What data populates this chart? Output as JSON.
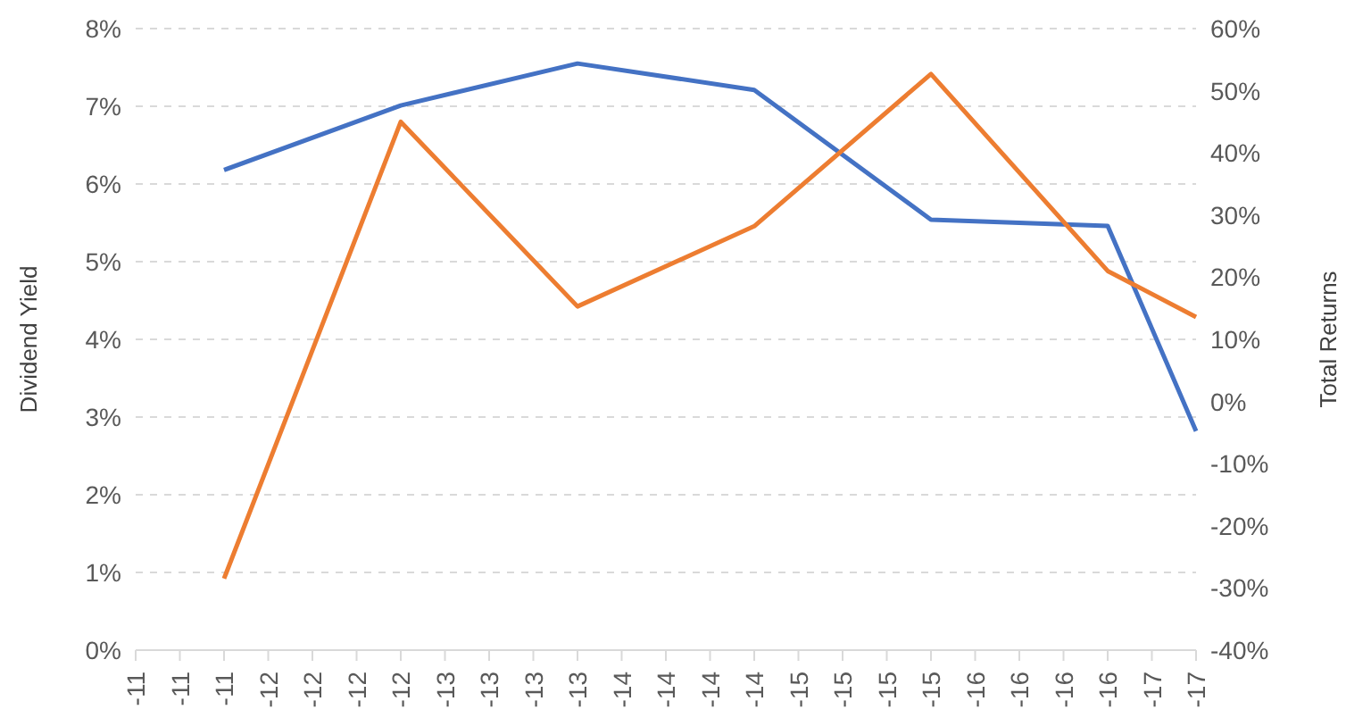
{
  "chart_data": {
    "type": "line",
    "ylabel": "Dividend Yield",
    "y2label": "Total Returns",
    "categories": [
      "-11",
      "-11",
      "-11",
      "-12",
      "-12",
      "-12",
      "-12",
      "-13",
      "-13",
      "-13",
      "-13",
      "-14",
      "-14",
      "-14",
      "-14",
      "-15",
      "-15",
      "-15",
      "-15",
      "-16",
      "-16",
      "-16",
      "-16",
      "-17",
      "-17"
    ],
    "series": [
      {
        "color": "#4472c4",
        "values": [
          null,
          null,
          6.18,
          null,
          null,
          null,
          7.01,
          null,
          null,
          null,
          7.55,
          null,
          null,
          null,
          7.21,
          null,
          null,
          null,
          5.54,
          null,
          null,
          null,
          5.46,
          null,
          2.82
        ]
      },
      {
        "color": "#ed7d31",
        "axis": "y2",
        "values": [
          null,
          null,
          -28.5,
          null,
          null,
          null,
          45,
          null,
          null,
          null,
          15.3,
          null,
          null,
          null,
          28.2,
          null,
          null,
          null,
          52.7,
          null,
          null,
          null,
          21,
          null,
          13.6
        ]
      }
    ],
    "ylim": [
      0,
      8
    ],
    "yticks": [
      {
        "value": 0,
        "label": "0%"
      },
      {
        "value": 1,
        "label": "1%"
      },
      {
        "value": 2,
        "label": "2%"
      },
      {
        "value": 3,
        "label": "3%"
      },
      {
        "value": 4,
        "label": "4%"
      },
      {
        "value": 5,
        "label": "5%"
      },
      {
        "value": 6,
        "label": "6%"
      },
      {
        "value": 7,
        "label": "7%"
      },
      {
        "value": 8,
        "label": "8%"
      }
    ],
    "y2lim": [
      -40,
      60
    ],
    "y2ticks": [
      {
        "value": -40,
        "label": "-40%"
      },
      {
        "value": -30,
        "label": "-30%"
      },
      {
        "value": -20,
        "label": "-20%"
      },
      {
        "value": -10,
        "label": "-10%"
      },
      {
        "value": 0,
        "label": "0%"
      },
      {
        "value": 10,
        "label": "10%"
      },
      {
        "value": 20,
        "label": "20%"
      },
      {
        "value": 30,
        "label": "30%"
      },
      {
        "value": 40,
        "label": "40%"
      },
      {
        "value": 50,
        "label": "50%"
      },
      {
        "value": 60,
        "label": "60%"
      }
    ],
    "grid": "y",
    "legend": false,
    "marker": "none",
    "line_style": "solid"
  }
}
